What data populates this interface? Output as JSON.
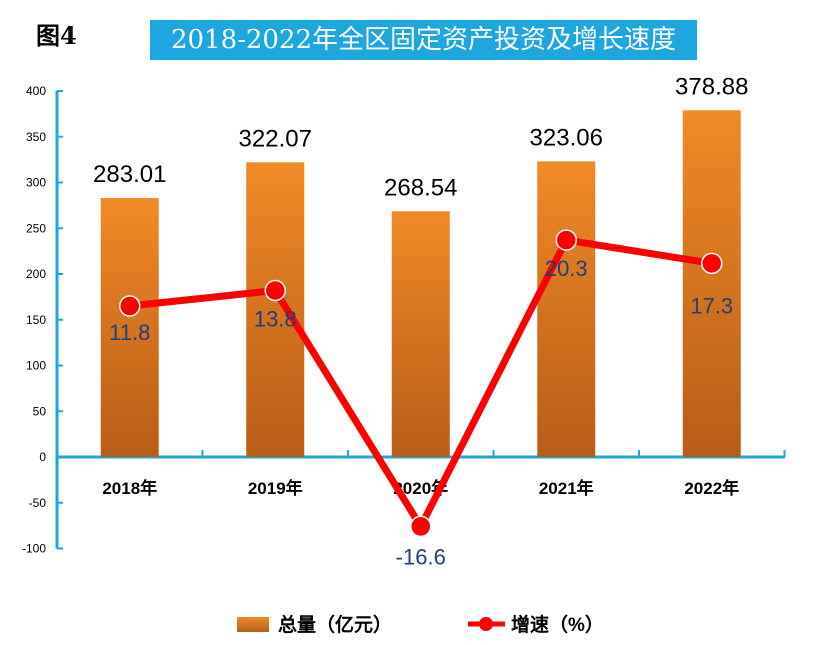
{
  "figure_label": "图4",
  "chart_data": {
    "type": "bar+line",
    "title": "2018-2022年全区固定资产投资及增长速度",
    "categories": [
      "2018年",
      "2019年",
      "2020年",
      "2021年",
      "2022年"
    ],
    "series": [
      {
        "name": "总量（亿元）",
        "type": "bar",
        "values": [
          283.01,
          322.07,
          268.54,
          323.06,
          378.88
        ],
        "labels": [
          "283.01",
          "322.07",
          "268.54",
          "323.06",
          "378.88"
        ],
        "color": "#e8801f"
      },
      {
        "name": "增速（%）",
        "type": "line",
        "values": [
          11.8,
          13.8,
          -16.6,
          20.3,
          17.3
        ],
        "labels": [
          "11.8",
          "13.8",
          "-16.6",
          "20.3",
          "17.3"
        ],
        "color": "#ff0000"
      }
    ],
    "yticks": [
      "400",
      "350",
      "300",
      "250",
      "200",
      "150",
      "100",
      "50",
      "0",
      "-50",
      "-100"
    ],
    "ylim": [
      -100,
      400
    ],
    "legend_position": "bottom",
    "axis_color": "#1ea6e0",
    "label_color_line": "#1f3f7a"
  }
}
